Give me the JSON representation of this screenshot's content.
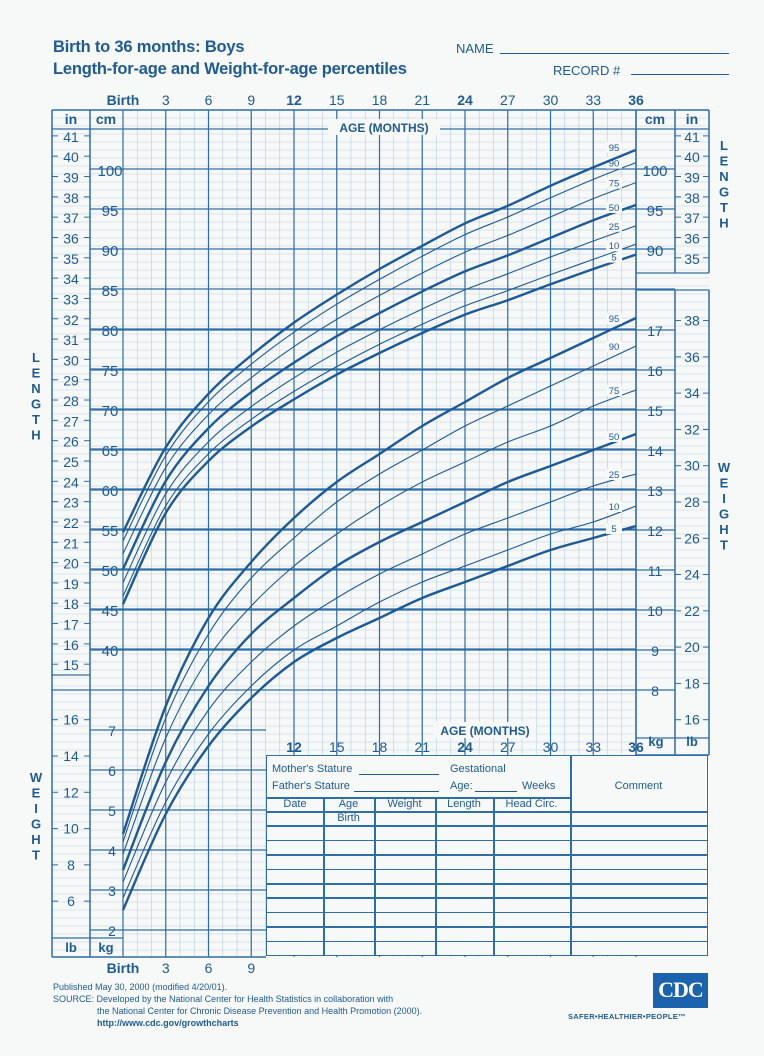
{
  "header": {
    "title_line1": "Birth to 36 months: Boys",
    "title_line2": "Length-for-age and Weight-for-age percentiles",
    "name_label": "NAME",
    "record_label": "RECORD #"
  },
  "footer": {
    "published": "Published May 30, 2000 (modified 4/20/01).",
    "source_line1": "SOURCE: Developed by the National Center for Health Statistics in collaboration with",
    "source_line2": "the National Center for Chronic Disease Prevention and Health Promotion (2000).",
    "url": "http://www.cdc.gov/growthcharts",
    "logo_text": "CDC",
    "tagline": "SAFER•HEALTHIER•PEOPLE™"
  },
  "record_table": {
    "mothers_stature": "Mother's Stature",
    "fathers_stature": "Father's Stature",
    "gestational": "Gestational",
    "age_label": "Age:",
    "weeks_label": "Weeks",
    "comment_label": "Comment",
    "columns": [
      "Date",
      "Age",
      "Weight",
      "Length",
      "Head  Circ."
    ],
    "first_row_age": "Birth",
    "row_count": 10
  },
  "colors": {
    "ink": "#1f5b93",
    "grid_major": "#2e6ea6",
    "grid_minor": "#b9cfe3",
    "background": "#f7f8f8",
    "logo_bg": "#1b64ad"
  },
  "chart_data": [
    {
      "type": "line",
      "title": "Length-for-age percentiles (Boys, Birth to 36 months)",
      "xlabel": "AGE (MONTHS)",
      "ylabel": "LENGTH",
      "x": [
        0,
        3,
        6,
        9,
        12,
        15,
        18,
        21,
        24,
        27,
        30,
        33,
        36
      ],
      "x_tick_labels": [
        "Birth",
        "3",
        "6",
        "9",
        "12",
        "15",
        "18",
        "21",
        "24",
        "27",
        "30",
        "33",
        "36"
      ],
      "y_unit_primary": "cm",
      "y_unit_secondary": "in",
      "ylim_cm": [
        36,
        104
      ],
      "y_ticks_cm": [
        40,
        45,
        50,
        55,
        60,
        65,
        70,
        75,
        80,
        85,
        90,
        95,
        100
      ],
      "y_ticks_in_left": [
        15,
        16,
        17,
        18,
        19,
        20,
        21,
        22,
        23,
        24,
        25,
        26,
        27,
        28,
        29,
        30,
        31,
        32,
        33,
        34,
        35,
        36,
        37,
        38,
        39,
        40,
        41
      ],
      "y_ticks_in_right": [
        35,
        36,
        37,
        38,
        39,
        40,
        41
      ],
      "grid": true,
      "series": [
        {
          "name": "5",
          "bold": true,
          "values": [
            45.6,
            57.0,
            63.5,
            67.8,
            71.2,
            74.3,
            77.0,
            79.5,
            81.8,
            83.6,
            85.6,
            87.5,
            89.3
          ]
        },
        {
          "name": "10",
          "bold": false,
          "values": [
            46.6,
            57.9,
            64.4,
            68.7,
            72.2,
            75.3,
            78.1,
            80.6,
            82.9,
            84.8,
            86.8,
            88.7,
            90.6
          ]
        },
        {
          "name": "25",
          "bold": false,
          "values": [
            48.3,
            59.4,
            65.9,
            70.3,
            73.9,
            77.1,
            79.9,
            82.5,
            84.9,
            86.9,
            89.0,
            91.0,
            92.9
          ]
        },
        {
          "name": "50",
          "bold": true,
          "values": [
            50.0,
            61.0,
            67.6,
            72.1,
            75.8,
            79.1,
            82.0,
            84.7,
            87.2,
            89.2,
            91.4,
            93.6,
            95.5
          ]
        },
        {
          "name": "75",
          "bold": false,
          "values": [
            51.9,
            62.7,
            69.3,
            73.9,
            77.8,
            81.2,
            84.2,
            87.0,
            89.6,
            91.7,
            94.0,
            96.3,
            98.3
          ]
        },
        {
          "name": "90",
          "bold": false,
          "values": [
            53.5,
            64.2,
            70.9,
            75.6,
            79.6,
            83.1,
            86.2,
            89.1,
            91.8,
            94.0,
            96.4,
            98.7,
            100.8
          ]
        },
        {
          "name": "95",
          "bold": true,
          "values": [
            54.6,
            65.2,
            71.9,
            76.7,
            80.8,
            84.3,
            87.5,
            90.4,
            93.2,
            95.4,
            97.9,
            100.2,
            102.4
          ]
        }
      ]
    },
    {
      "type": "line",
      "title": "Weight-for-age percentiles (Boys, Birth to 36 months)",
      "xlabel": "AGE (MONTHS)",
      "ylabel": "WEIGHT",
      "x": [
        0,
        3,
        6,
        9,
        12,
        15,
        18,
        21,
        24,
        27,
        30,
        33,
        36
      ],
      "x_tick_labels": [
        "Birth",
        "3",
        "6",
        "9",
        "12",
        "15",
        "18",
        "21",
        "24",
        "27",
        "30",
        "33",
        "36"
      ],
      "y_unit_primary": "kg",
      "y_unit_secondary": "lb",
      "ylim_kg": [
        1.5,
        18.3
      ],
      "y_ticks_kg": [
        2,
        3,
        4,
        5,
        6,
        7,
        8,
        9,
        10,
        11,
        12,
        13,
        14,
        15,
        16,
        17
      ],
      "y_ticks_lb_left": [
        6,
        8,
        10,
        12,
        14,
        16
      ],
      "y_ticks_lb_right": [
        16,
        18,
        20,
        22,
        24,
        26,
        28,
        30,
        32,
        34,
        36,
        38
      ],
      "grid": true,
      "series": [
        {
          "name": "5",
          "bold": true,
          "values": [
            2.5,
            4.9,
            6.6,
            7.8,
            8.7,
            9.3,
            9.8,
            10.3,
            10.7,
            11.1,
            11.5,
            11.8,
            12.1
          ]
        },
        {
          "name": "10",
          "bold": false,
          "values": [
            2.8,
            5.2,
            6.9,
            8.1,
            9.0,
            9.6,
            10.2,
            10.7,
            11.1,
            11.5,
            11.9,
            12.2,
            12.6
          ]
        },
        {
          "name": "25",
          "bold": false,
          "values": [
            3.2,
            5.7,
            7.5,
            8.7,
            9.6,
            10.3,
            10.9,
            11.4,
            11.9,
            12.3,
            12.7,
            13.1,
            13.4
          ]
        },
        {
          "name": "50",
          "bold": true,
          "values": [
            3.5,
            6.2,
            8.1,
            9.4,
            10.3,
            11.1,
            11.7,
            12.2,
            12.7,
            13.2,
            13.6,
            14.0,
            14.4
          ]
        },
        {
          "name": "75",
          "bold": false,
          "values": [
            3.9,
            6.8,
            8.8,
            10.1,
            11.1,
            11.9,
            12.6,
            13.2,
            13.7,
            14.2,
            14.6,
            15.1,
            15.5
          ]
        },
        {
          "name": "90",
          "bold": false,
          "values": [
            4.2,
            7.3,
            9.4,
            10.8,
            11.8,
            12.7,
            13.4,
            14.0,
            14.6,
            15.1,
            15.6,
            16.1,
            16.6
          ]
        },
        {
          "name": "95",
          "bold": true,
          "values": [
            4.4,
            7.6,
            9.8,
            11.2,
            12.3,
            13.2,
            13.9,
            14.6,
            15.2,
            15.8,
            16.3,
            16.8,
            17.3
          ]
        }
      ]
    }
  ],
  "labels": {
    "age_months": "AGE (MONTHS)",
    "length_vertical": "LENGTH",
    "weight_vertical": "WEIGHT",
    "in": "in",
    "cm": "cm",
    "kg": "kg",
    "lb": "lb"
  }
}
